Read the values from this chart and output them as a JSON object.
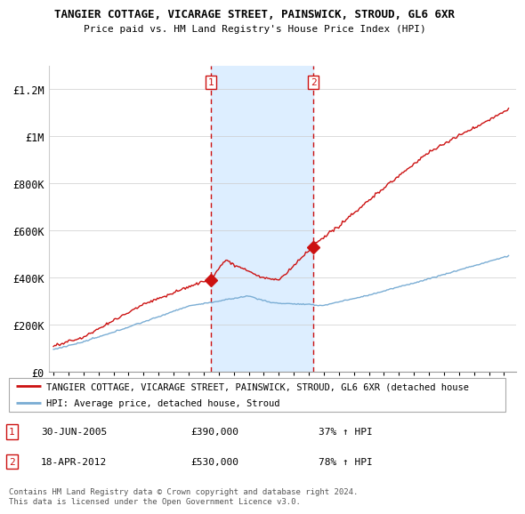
{
  "title": "TANGIER COTTAGE, VICARAGE STREET, PAINSWICK, STROUD, GL6 6XR",
  "subtitle": "Price paid vs. HM Land Registry's House Price Index (HPI)",
  "legend_line1": "TANGIER COTTAGE, VICARAGE STREET, PAINSWICK, STROUD, GL6 6XR (detached house",
  "legend_line2": "HPI: Average price, detached house, Stroud",
  "footnote": "Contains HM Land Registry data © Crown copyright and database right 2024.\nThis data is licensed under the Open Government Licence v3.0.",
  "sale1_label": "1",
  "sale1_date": "30-JUN-2005",
  "sale1_price": "£390,000",
  "sale1_hpi": "37% ↑ HPI",
  "sale2_label": "2",
  "sale2_date": "18-APR-2012",
  "sale2_price": "£530,000",
  "sale2_hpi": "78% ↑ HPI",
  "sale1_year": 2005.5,
  "sale1_value": 390000,
  "sale2_year": 2012.3,
  "sale2_value": 530000,
  "hpi_color": "#7aadd4",
  "price_color": "#cc1111",
  "shade_color": "#ddeeff",
  "ylim": [
    0,
    1300000
  ],
  "xlim_start": 1994.7,
  "xlim_end": 2025.8,
  "yticks": [
    0,
    200000,
    400000,
    600000,
    800000,
    1000000,
    1200000
  ],
  "ytick_labels": [
    "£0",
    "£200K",
    "£400K",
    "£600K",
    "£800K",
    "£1M",
    "£1.2M"
  ]
}
